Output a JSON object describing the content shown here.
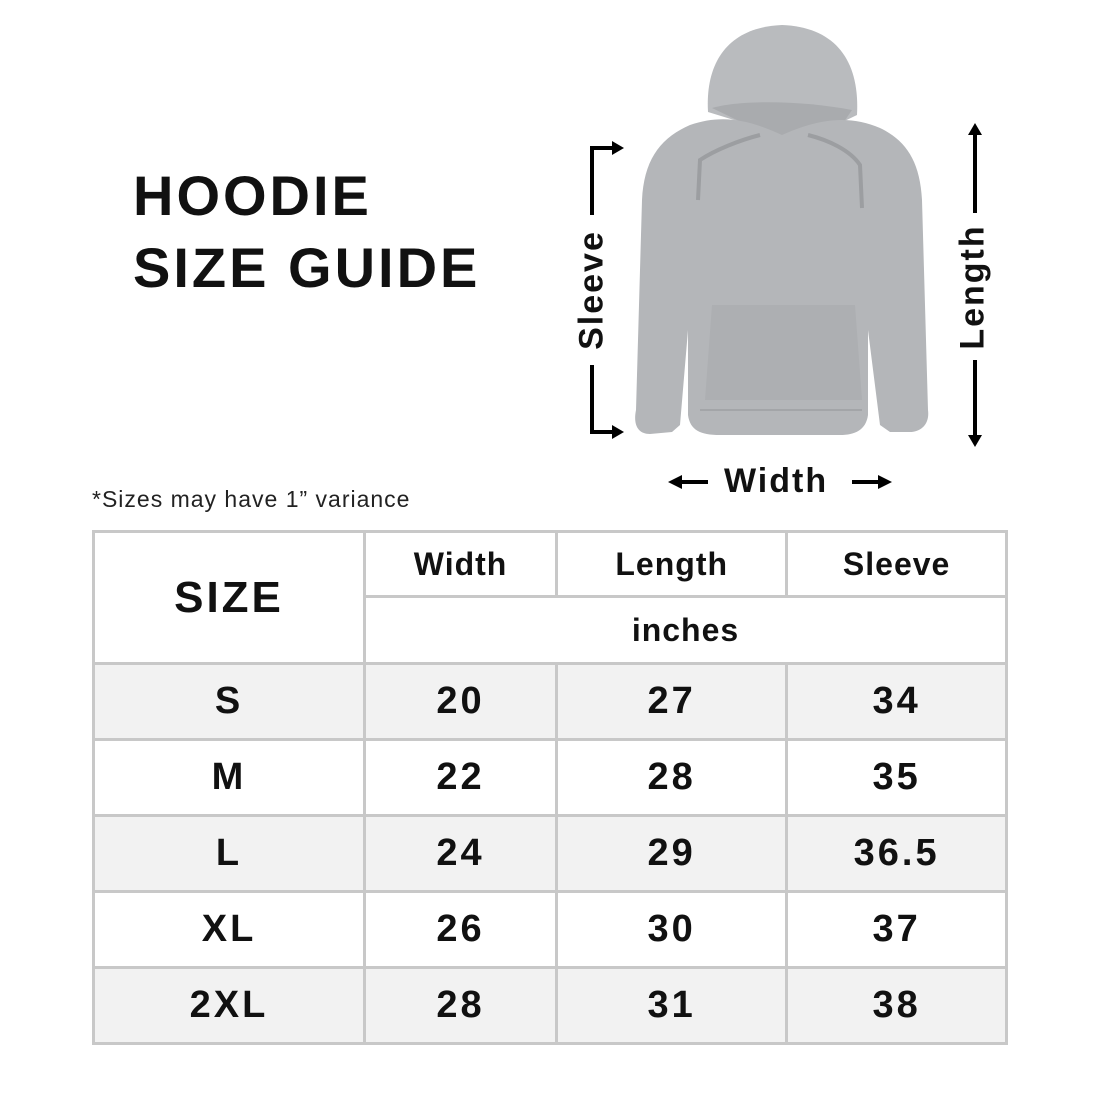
{
  "title": {
    "line1": "HOODIE",
    "line2": "SIZE GUIDE"
  },
  "diagram": {
    "sleeve_label": "Sleeve",
    "length_label": "Length",
    "width_label": "Width",
    "garment_color": "#b4b6b9"
  },
  "note": "*Sizes may have 1” variance",
  "table": {
    "size_header": "SIZE",
    "columns": [
      "Width",
      "Length",
      "Sleeve"
    ],
    "unit": "inches",
    "rows": [
      {
        "size": "S",
        "width": "20",
        "length": "27",
        "sleeve": "34"
      },
      {
        "size": "M",
        "width": "22",
        "length": "28",
        "sleeve": "35"
      },
      {
        "size": "L",
        "width": "24",
        "length": "29",
        "sleeve": "36.5"
      },
      {
        "size": "XL",
        "width": "26",
        "length": "30",
        "sleeve": "37"
      },
      {
        "size": "2XL",
        "width": "28",
        "length": "31",
        "sleeve": "38"
      }
    ],
    "border_color": "#c8c8c8",
    "alt_row_color": "#f2f2f2"
  }
}
